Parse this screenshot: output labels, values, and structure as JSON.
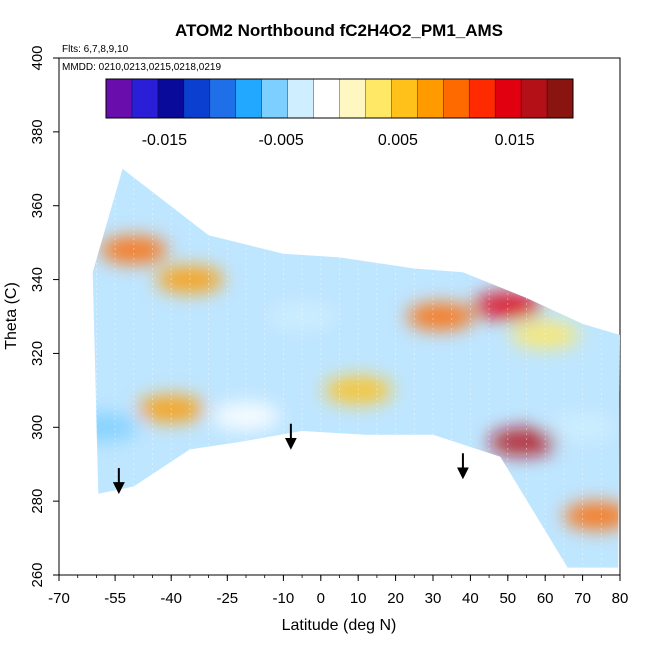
{
  "chart_data": {
    "type": "heatmap",
    "title": "ATOM2 Northbound fC2H4O2_PM1_AMS",
    "notes": [
      "Flts: 6,7,8,9,10",
      "MMDD: 0210,0213,0215,0218,0219"
    ],
    "xlabel": "Latitude (deg N)",
    "ylabel": "Theta (C)",
    "xlim": [
      -70,
      80
    ],
    "ylim": [
      260,
      400
    ],
    "x_ticks": [
      -70,
      -55,
      -40,
      -25,
      -10,
      0,
      10,
      20,
      30,
      40,
      50,
      60,
      70,
      80
    ],
    "y_ticks": [
      260,
      280,
      300,
      320,
      340,
      360,
      380,
      400
    ],
    "colorbar": {
      "range": [
        -0.02,
        0.02
      ],
      "tick_values": [
        -0.015,
        -0.005,
        0.005,
        0.015
      ],
      "tick_labels": [
        "-0.015",
        "-0.005",
        "0.005",
        "0.015"
      ],
      "colors": [
        "#6a0dad",
        "#2a1fd6",
        "#0a0a9a",
        "#0b3fd0",
        "#1e6fe8",
        "#22a8ff",
        "#7ccfff",
        "#cfeeff",
        "#ffffff",
        "#fff7c2",
        "#ffe866",
        "#ffc11a",
        "#ff9a00",
        "#ff6a00",
        "#ff2a00",
        "#e00010",
        "#b31018",
        "#8a1410"
      ]
    },
    "envelope_boundary": [
      {
        "lat": -59.5,
        "theta": 282
      },
      {
        "lat": -61,
        "theta": 342
      },
      {
        "lat": -53,
        "theta": 370
      },
      {
        "lat": -30,
        "theta": 352
      },
      {
        "lat": -10,
        "theta": 347
      },
      {
        "lat": 5,
        "theta": 346
      },
      {
        "lat": 25,
        "theta": 343
      },
      {
        "lat": 38,
        "theta": 342
      },
      {
        "lat": 55,
        "theta": 335
      },
      {
        "lat": 70,
        "theta": 328
      },
      {
        "lat": 80,
        "theta": 325
      },
      {
        "lat": 79.5,
        "theta": 262
      },
      {
        "lat": 66,
        "theta": 262
      },
      {
        "lat": 48,
        "theta": 292
      },
      {
        "lat": 30,
        "theta": 298
      },
      {
        "lat": 12,
        "theta": 298
      },
      {
        "lat": -5,
        "theta": 299
      },
      {
        "lat": -22,
        "theta": 296
      },
      {
        "lat": -35,
        "theta": 294
      },
      {
        "lat": -50,
        "theta": 284
      }
    ],
    "features": [
      {
        "lat": -50,
        "theta": 348,
        "value": 0.009
      },
      {
        "lat": -35,
        "theta": 340,
        "value": 0.008
      },
      {
        "lat": -5,
        "theta": 330,
        "value": -0.004
      },
      {
        "lat": 32,
        "theta": 330,
        "value": 0.01
      },
      {
        "lat": 50,
        "theta": 333,
        "value": 0.015
      },
      {
        "lat": 54,
        "theta": 296,
        "value": 0.016
      },
      {
        "lat": 70,
        "theta": 300,
        "value": -0.004
      },
      {
        "lat": 74,
        "theta": 276,
        "value": 0.009
      },
      {
        "lat": -40,
        "theta": 305,
        "value": 0.008
      },
      {
        "lat": -20,
        "theta": 303,
        "value": -0.001
      },
      {
        "lat": 10,
        "theta": 310,
        "value": 0.006
      },
      {
        "lat": 60,
        "theta": 325,
        "value": 0.004
      },
      {
        "lat": -58,
        "theta": 300,
        "value": -0.005
      }
    ],
    "arrows": [
      {
        "lat": -54,
        "theta": 283
      },
      {
        "lat": -8,
        "theta": 295
      },
      {
        "lat": 38,
        "theta": 287
      }
    ],
    "grid": false,
    "legend": "colorbar-top-inside"
  }
}
